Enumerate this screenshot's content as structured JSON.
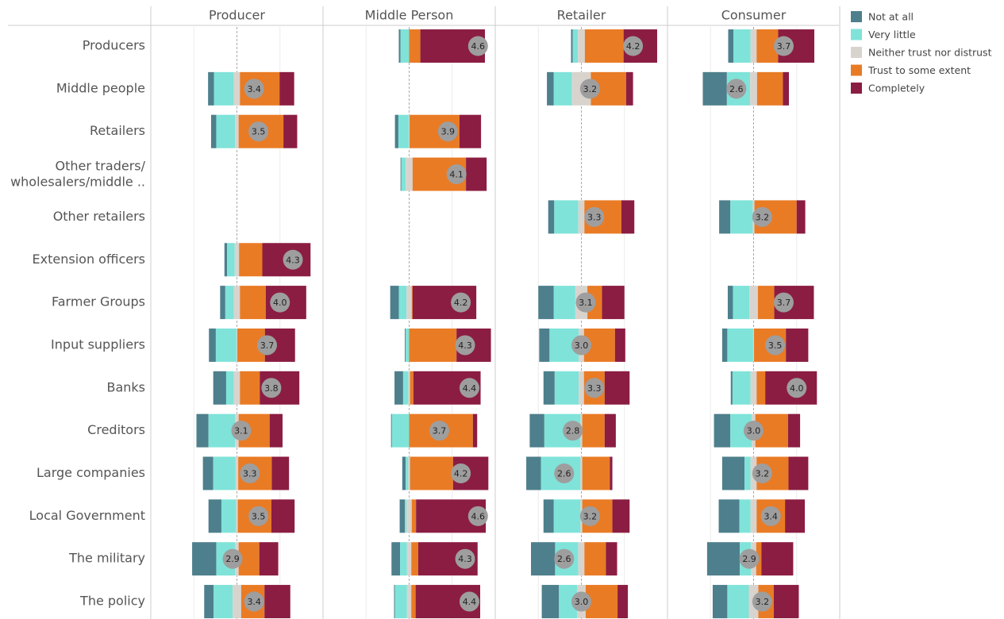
{
  "chart_data": {
    "type": "diverging_bar",
    "panel_titles": [
      "Producer",
      "Middle Person",
      "Retailer",
      "Consumer"
    ],
    "categories": [
      "Producers",
      "Middle people",
      "Retailers",
      "Other traders/\nwholesalers/middle ..",
      "Other retailers",
      "Extension officers",
      "Farmer Groups",
      "Input suppliers",
      "Banks",
      "Creditors",
      "Large companies",
      "Local Government",
      "The military",
      "The policy"
    ],
    "series": [
      {
        "name": "Not at all",
        "color": "#4e7f8c",
        "values": [
          [
            null,
            7,
            6,
            null,
            null,
            3,
            6,
            8,
            15,
            14,
            12,
            15,
            28,
            11
          ],
          [
            2,
            null,
            4,
            1,
            null,
            null,
            10,
            1,
            10,
            1,
            4,
            6,
            10,
            1
          ],
          [
            2,
            8,
            null,
            null,
            7,
            null,
            18,
            12,
            13,
            17,
            17,
            12,
            28,
            20
          ],
          [
            6,
            28,
            null,
            null,
            13,
            null,
            6,
            6,
            2,
            19,
            26,
            24,
            38,
            17
          ]
        ]
      },
      {
        "name": "Very little",
        "color": "#7fe3d9",
        "values": [
          [
            null,
            23,
            22,
            null,
            null,
            9,
            10,
            24,
            9,
            31,
            26,
            17,
            22,
            22
          ],
          [
            10,
            null,
            12,
            5,
            null,
            null,
            9,
            4,
            6,
            20,
            3,
            2,
            8,
            14
          ],
          [
            6,
            21,
            null,
            null,
            28,
            null,
            25,
            34,
            28,
            42,
            46,
            31,
            27,
            21
          ],
          [
            20,
            27,
            null,
            null,
            26,
            null,
            19,
            30,
            21,
            25,
            7,
            13,
            13,
            25
          ]
        ]
      },
      {
        "name": "Neither trust nor distrust",
        "color": "#d9d3ce",
        "values": [
          [
            null,
            7,
            4,
            null,
            null,
            5,
            7,
            1,
            7,
            4,
            3,
            2,
            4,
            10
          ],
          [
            0,
            null,
            1,
            8,
            null,
            null,
            6,
            0,
            2,
            0,
            2,
            6,
            5,
            5
          ],
          [
            8,
            22,
            null,
            null,
            7,
            null,
            14,
            6,
            6,
            2,
            2,
            2,
            7,
            10
          ],
          [
            7,
            8,
            null,
            null,
            2,
            null,
            10,
            1,
            7,
            4,
            7,
            7,
            6,
            11
          ]
        ]
      },
      {
        "name": "Trust to some extent",
        "color": "#e97b25",
        "values": [
          [
            null,
            46,
            52,
            null,
            null,
            27,
            30,
            32,
            23,
            36,
            39,
            39,
            24,
            27
          ],
          [
            13,
            null,
            58,
            62,
            null,
            null,
            1,
            55,
            4,
            74,
            50,
            5,
            8,
            5
          ],
          [
            45,
            41,
            null,
            null,
            43,
            null,
            17,
            36,
            24,
            26,
            32,
            35,
            25,
            37
          ],
          [
            25,
            30,
            null,
            null,
            49,
            null,
            19,
            37,
            10,
            38,
            37,
            33,
            6,
            18
          ]
        ]
      },
      {
        "name": "Completely",
        "color": "#8b1d42",
        "values": [
          [
            null,
            17,
            16,
            null,
            null,
            56,
            47,
            35,
            46,
            15,
            20,
            27,
            22,
            30
          ],
          [
            75,
            null,
            25,
            24,
            null,
            null,
            74,
            40,
            78,
            5,
            41,
            81,
            69,
            75
          ],
          [
            39,
            8,
            null,
            null,
            15,
            null,
            26,
            12,
            29,
            13,
            3,
            20,
            13,
            12
          ],
          [
            42,
            7,
            null,
            null,
            10,
            null,
            46,
            26,
            60,
            14,
            23,
            23,
            37,
            29
          ]
        ]
      }
    ],
    "means": [
      [
        null,
        3.4,
        3.5,
        null,
        null,
        4.3,
        4.0,
        3.7,
        3.8,
        3.1,
        3.3,
        3.5,
        2.9,
        3.4
      ],
      [
        4.6,
        null,
        3.9,
        4.1,
        null,
        null,
        4.2,
        4.3,
        4.4,
        3.7,
        4.2,
        4.6,
        4.3,
        4.4
      ],
      [
        4.2,
        3.2,
        null,
        null,
        3.3,
        null,
        3.1,
        3.0,
        3.3,
        2.8,
        2.6,
        3.2,
        2.6,
        3.0
      ],
      [
        3.7,
        2.6,
        null,
        null,
        3.2,
        null,
        3.7,
        3.5,
        4.0,
        3.0,
        3.2,
        3.4,
        2.9,
        3.2
      ]
    ],
    "mean_labels": [
      [
        null,
        "3.4",
        "3.5",
        null,
        null,
        "4.3",
        "4.0",
        "3.7",
        "3.8",
        "3.1",
        "3.3",
        "3.5",
        "2.9",
        "3.4"
      ],
      [
        "4.6",
        null,
        "3.9",
        "4.1",
        null,
        null,
        "4.2",
        "4.3",
        "4.4",
        "3.7",
        "4.2",
        "4.6",
        "4.3",
        "4.4"
      ],
      [
        "4.2",
        "3.2",
        null,
        null,
        "3.3",
        null,
        "3.1",
        "3.0",
        "3.3",
        "2.8",
        "2.6",
        "3.2",
        "2.6",
        "3.0"
      ],
      [
        "3.7",
        "2.6",
        null,
        null,
        "3.2",
        null,
        "3.7",
        "3.5",
        "4.0",
        "3.0",
        "3.2",
        "3.4",
        "2.9",
        "3.2"
      ]
    ],
    "xlim": [
      -100,
      100
    ],
    "xticks": [
      -50,
      0,
      50
    ],
    "mean_xlim": [
      1,
      5
    ],
    "grid": true
  }
}
